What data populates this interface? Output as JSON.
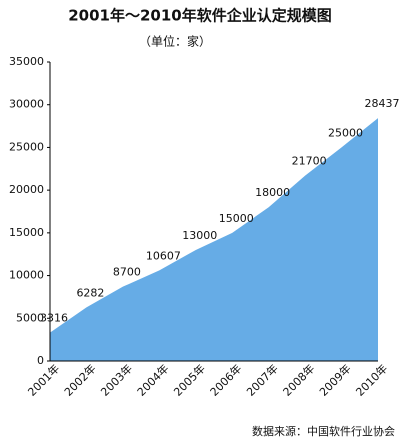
{
  "chart_data": {
    "type": "area",
    "title": "2001年～2010年软件企业认定规模图",
    "subtitle": "（单位：家）",
    "source": "数据来源：中国软件行业协会",
    "categories": [
      "2001年",
      "2002年",
      "2003年",
      "2004年",
      "2005年",
      "2006年",
      "2007年",
      "2008年",
      "2009年",
      "2010年"
    ],
    "values": [
      3316,
      6282,
      8700,
      10607,
      13000,
      15000,
      18000,
      21700,
      25000,
      28437
    ],
    "color": "#66ace6",
    "ylim": [
      0,
      35000
    ],
    "yticks": [
      0,
      5000,
      10000,
      15000,
      20000,
      25000,
      30000,
      35000
    ],
    "grid": false
  }
}
